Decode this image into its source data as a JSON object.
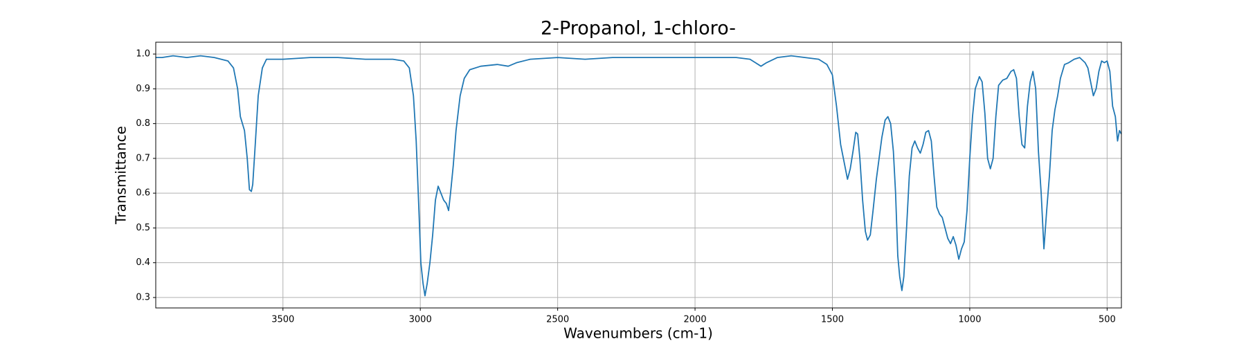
{
  "chart_data": {
    "type": "line",
    "title": "2-Propanol, 1-chloro-",
    "xlabel": "Wavenumbers (cm-1)",
    "ylabel": "Transmittance",
    "xlim": [
      3963,
      448
    ],
    "ylim": [
      0.27,
      1.034
    ],
    "xticks": [
      3500,
      3000,
      2500,
      2000,
      1500,
      1000,
      500
    ],
    "yticks": [
      0.3,
      0.4,
      0.5,
      0.6,
      0.7,
      0.8,
      0.9,
      {
        "value": 1,
        "label": "1.0"
      }
    ],
    "grid": true,
    "series": [
      {
        "color": "#1f77b4",
        "x": [
          3963,
          3940,
          3900,
          3850,
          3800,
          3750,
          3700,
          3680,
          3665,
          3655,
          3640,
          3630,
          3622,
          3615,
          3610,
          3600,
          3590,
          3575,
          3560,
          3500,
          3400,
          3300,
          3200,
          3100,
          3060,
          3040,
          3025,
          3015,
          3005,
          2998,
          2990,
          2983,
          2975,
          2965,
          2955,
          2945,
          2935,
          2925,
          2915,
          2905,
          2897,
          2890,
          2880,
          2870,
          2855,
          2840,
          2820,
          2780,
          2720,
          2680,
          2650,
          2600,
          2500,
          2400,
          2300,
          2200,
          2100,
          2000,
          1900,
          1850,
          1800,
          1780,
          1760,
          1740,
          1700,
          1650,
          1600,
          1550,
          1520,
          1500,
          1485,
          1470,
          1455,
          1445,
          1435,
          1425,
          1415,
          1408,
          1400,
          1390,
          1380,
          1372,
          1362,
          1352,
          1340,
          1330,
          1320,
          1308,
          1298,
          1288,
          1278,
          1270,
          1262,
          1255,
          1247,
          1240,
          1230,
          1220,
          1210,
          1200,
          1190,
          1180,
          1170,
          1160,
          1150,
          1140,
          1130,
          1120,
          1110,
          1100,
          1090,
          1080,
          1070,
          1060,
          1050,
          1040,
          1030,
          1020,
          1010,
          1000,
          990,
          980,
          965,
          955,
          945,
          935,
          925,
          915,
          905,
          895,
          880,
          865,
          850,
          840,
          830,
          820,
          810,
          800,
          790,
          780,
          770,
          760,
          750,
          740,
          730,
          720,
          710,
          700,
          690,
          680,
          670,
          655,
          640,
          620,
          600,
          580,
          570,
          560,
          550,
          540,
          530,
          520,
          510,
          500,
          490,
          480,
          470,
          462,
          455,
          448
        ],
        "values": [
          0.99,
          0.99,
          0.995,
          0.99,
          0.995,
          0.99,
          0.98,
          0.96,
          0.9,
          0.82,
          0.78,
          0.7,
          0.61,
          0.605,
          0.625,
          0.75,
          0.88,
          0.96,
          0.985,
          0.985,
          0.99,
          0.99,
          0.985,
          0.985,
          0.98,
          0.96,
          0.88,
          0.75,
          0.55,
          0.4,
          0.34,
          0.305,
          0.34,
          0.4,
          0.48,
          0.58,
          0.62,
          0.6,
          0.58,
          0.57,
          0.55,
          0.6,
          0.68,
          0.78,
          0.88,
          0.93,
          0.955,
          0.965,
          0.97,
          0.965,
          0.975,
          0.985,
          0.99,
          0.985,
          0.99,
          0.99,
          0.99,
          0.99,
          0.99,
          0.99,
          0.985,
          0.975,
          0.965,
          0.975,
          0.99,
          0.995,
          0.99,
          0.985,
          0.97,
          0.94,
          0.85,
          0.74,
          0.68,
          0.64,
          0.67,
          0.72,
          0.775,
          0.77,
          0.7,
          0.58,
          0.49,
          0.465,
          0.48,
          0.55,
          0.64,
          0.7,
          0.76,
          0.81,
          0.82,
          0.8,
          0.72,
          0.6,
          0.42,
          0.36,
          0.32,
          0.36,
          0.5,
          0.65,
          0.73,
          0.75,
          0.73,
          0.715,
          0.74,
          0.775,
          0.78,
          0.75,
          0.65,
          0.56,
          0.54,
          0.53,
          0.5,
          0.47,
          0.455,
          0.475,
          0.45,
          0.41,
          0.44,
          0.46,
          0.55,
          0.7,
          0.82,
          0.9,
          0.935,
          0.92,
          0.83,
          0.7,
          0.67,
          0.7,
          0.82,
          0.91,
          0.925,
          0.93,
          0.95,
          0.955,
          0.93,
          0.82,
          0.74,
          0.73,
          0.85,
          0.92,
          0.95,
          0.9,
          0.72,
          0.6,
          0.44,
          0.55,
          0.65,
          0.78,
          0.84,
          0.88,
          0.93,
          0.97,
          0.975,
          0.985,
          0.99,
          0.975,
          0.96,
          0.92,
          0.88,
          0.9,
          0.95,
          0.98,
          0.975,
          0.98,
          0.95,
          0.85,
          0.82,
          0.75,
          0.78,
          0.77
        ]
      }
    ]
  }
}
